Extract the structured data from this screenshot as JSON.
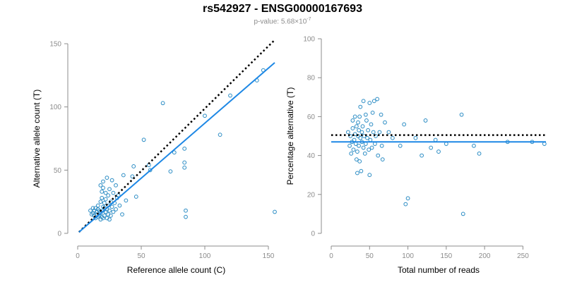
{
  "figure": {
    "title": "rs542927 - ENSG00000167693",
    "subtitle_prefix": "p-value: 5.68×10",
    "subtitle_exponent": "-7"
  },
  "colors": {
    "points": "#2b8cc4",
    "fit_line": "#1e88e5",
    "reference_line": "#000000",
    "axis": "#8c8c8c"
  },
  "chart_data": [
    {
      "type": "scatter",
      "xlabel": "Reference allele count (C)",
      "ylabel": "Alternative allele count (T)",
      "xlim": [
        0,
        155
      ],
      "ylim": [
        0,
        150
      ],
      "x_ticks": [
        0,
        50,
        100,
        150
      ],
      "y_ticks": [
        0,
        50,
        100,
        150
      ],
      "grid": false,
      "fit_line": {
        "x0": 1,
        "y0": 1,
        "x1": 155,
        "y1": 135
      },
      "reference_line": {
        "x0": 1,
        "y0": 1,
        "x1": 155,
        "y1": 153
      },
      "points": [
        [
          10,
          18
        ],
        [
          11,
          15
        ],
        [
          12,
          20
        ],
        [
          12,
          16
        ],
        [
          13,
          14
        ],
        [
          13,
          18
        ],
        [
          14,
          12
        ],
        [
          14,
          20
        ],
        [
          15,
          15
        ],
        [
          15,
          17
        ],
        [
          16,
          13
        ],
        [
          16,
          19
        ],
        [
          16,
          22
        ],
        [
          17,
          14
        ],
        [
          17,
          18
        ],
        [
          18,
          11
        ],
        [
          18,
          16
        ],
        [
          18,
          25
        ],
        [
          18,
          38
        ],
        [
          19,
          13
        ],
        [
          19,
          28
        ],
        [
          19,
          33
        ],
        [
          20,
          12
        ],
        [
          20,
          18
        ],
        [
          20,
          21
        ],
        [
          20,
          36
        ],
        [
          20,
          41
        ],
        [
          21,
          14
        ],
        [
          21,
          20
        ],
        [
          21,
          24
        ],
        [
          22,
          17
        ],
        [
          22,
          27
        ],
        [
          22,
          32
        ],
        [
          23,
          12
        ],
        [
          23,
          19
        ],
        [
          23,
          44
        ],
        [
          24,
          15
        ],
        [
          24,
          22
        ],
        [
          24,
          30
        ],
        [
          25,
          11
        ],
        [
          25,
          18
        ],
        [
          25,
          35
        ],
        [
          26,
          14
        ],
        [
          26,
          25
        ],
        [
          27,
          21
        ],
        [
          27,
          42
        ],
        [
          28,
          17
        ],
        [
          28,
          32
        ],
        [
          29,
          24
        ],
        [
          30,
          19
        ],
        [
          30,
          38
        ],
        [
          31,
          28
        ],
        [
          32,
          30
        ],
        [
          33,
          22
        ],
        [
          35,
          15
        ],
        [
          36,
          46
        ],
        [
          38,
          26
        ],
        [
          43,
          45
        ],
        [
          44,
          53
        ],
        [
          46,
          29
        ],
        [
          52,
          74
        ],
        [
          56,
          54
        ],
        [
          57,
          50
        ],
        [
          67,
          103
        ],
        [
          73,
          49
        ],
        [
          76,
          64
        ],
        [
          84,
          67
        ],
        [
          84,
          56
        ],
        [
          84,
          52
        ],
        [
          85,
          18
        ],
        [
          85,
          13
        ],
        [
          100,
          93
        ],
        [
          112,
          78
        ],
        [
          120,
          109
        ],
        [
          141,
          121
        ],
        [
          146,
          129
        ],
        [
          155,
          17
        ]
      ]
    },
    {
      "type": "scatter",
      "xlabel": "Total number of reads",
      "ylabel": "Percentage alternative (T)",
      "xlim": [
        0,
        280
      ],
      "ylim": [
        0,
        100
      ],
      "x_ticks": [
        0,
        50,
        100,
        150,
        200,
        250
      ],
      "y_ticks": [
        0,
        20,
        40,
        60,
        80,
        100
      ],
      "grid": false,
      "fit_level": 47,
      "reference_level": 50.5,
      "points": [
        [
          22,
          52
        ],
        [
          24,
          45
        ],
        [
          25,
          50
        ],
        [
          26,
          41
        ],
        [
          27,
          47
        ],
        [
          28,
          54
        ],
        [
          28,
          58
        ],
        [
          29,
          43
        ],
        [
          30,
          48
        ],
        [
          31,
          51
        ],
        [
          31,
          60
        ],
        [
          32,
          46
        ],
        [
          33,
          38
        ],
        [
          33,
          55
        ],
        [
          34,
          31
        ],
        [
          34,
          42
        ],
        [
          35,
          50
        ],
        [
          35,
          57
        ],
        [
          36,
          45
        ],
        [
          36,
          53
        ],
        [
          37,
          37
        ],
        [
          37,
          60
        ],
        [
          38,
          49
        ],
        [
          38,
          65
        ],
        [
          39,
          32
        ],
        [
          40,
          47
        ],
        [
          40,
          52
        ],
        [
          41,
          55
        ],
        [
          42,
          44
        ],
        [
          42,
          68
        ],
        [
          43,
          50
        ],
        [
          44,
          41
        ],
        [
          45,
          46
        ],
        [
          45,
          61
        ],
        [
          46,
          58
        ],
        [
          47,
          49
        ],
        [
          48,
          53
        ],
        [
          49,
          43
        ],
        [
          50,
          30
        ],
        [
          50,
          67
        ],
        [
          51,
          48
        ],
        [
          52,
          56
        ],
        [
          53,
          44
        ],
        [
          54,
          62
        ],
        [
          55,
          52
        ],
        [
          56,
          68
        ],
        [
          57,
          46
        ],
        [
          58,
          50
        ],
        [
          60,
          69
        ],
        [
          61,
          40
        ],
        [
          63,
          52
        ],
        [
          65,
          61
        ],
        [
          66,
          45
        ],
        [
          67,
          38
        ],
        [
          70,
          57
        ],
        [
          75,
          52
        ],
        [
          80,
          49
        ],
        [
          90,
          45
        ],
        [
          95,
          56
        ],
        [
          97,
          15
        ],
        [
          100,
          18
        ],
        [
          110,
          49
        ],
        [
          118,
          40
        ],
        [
          123,
          58
        ],
        [
          130,
          44
        ],
        [
          136,
          48
        ],
        [
          140,
          42
        ],
        [
          150,
          46
        ],
        [
          170,
          61
        ],
        [
          172,
          10
        ],
        [
          186,
          45
        ],
        [
          193,
          41
        ],
        [
          230,
          47
        ],
        [
          262,
          47
        ],
        [
          278,
          46
        ]
      ]
    }
  ]
}
